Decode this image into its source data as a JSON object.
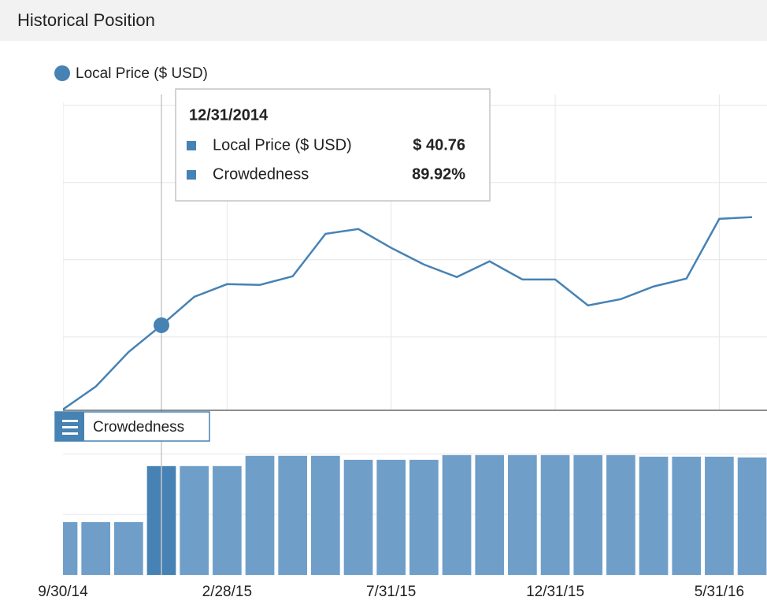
{
  "header": {
    "title": "Historical Position"
  },
  "chart_data": [
    {
      "type": "line",
      "categories": [
        "9/30/14",
        null,
        null,
        null,
        null,
        "2/28/15",
        null,
        null,
        null,
        null,
        "7/31/15",
        null,
        null,
        null,
        null,
        "12/31/15",
        null,
        null,
        null,
        null,
        "5/31/16",
        null
      ],
      "series": [
        {
          "name": "Local Price ($ USD)",
          "color": "#4682b4",
          "values": [
            35.31,
            36.79,
            39.03,
            40.76,
            42.6,
            43.42,
            43.37,
            43.93,
            46.68,
            46.99,
            45.77,
            44.69,
            43.88,
            44.9,
            43.72,
            43.72,
            42.04,
            42.45,
            43.27,
            43.78,
            47.65,
            47.76
          ]
        }
      ],
      "ylim": [
        35.3,
        55.7
      ],
      "yticks": [
        40,
        45,
        50,
        55
      ],
      "grid": true,
      "legend": "top-left"
    },
    {
      "type": "bar",
      "series": [
        {
          "name": "Crowdedness",
          "color": "#6f9fc9",
          "highlight_color": "#4682b4",
          "values": [
            43.66,
            43.66,
            43.66,
            89.92,
            89.92,
            89.92,
            98.4,
            98.4,
            98.4,
            95.1,
            95.1,
            95.1,
            99.0,
            99.0,
            99.0,
            99.0,
            99.0,
            99.0,
            97.7,
            97.7,
            97.7,
            97.1
          ]
        }
      ],
      "ylim": [
        0,
        136
      ],
      "yticks": [
        50,
        100
      ],
      "grid": true,
      "highlight_index": 3
    }
  ],
  "tooltip": {
    "date": "12/31/2014",
    "labels": [
      "$ 40.76",
      "89.92%"
    ]
  }
}
